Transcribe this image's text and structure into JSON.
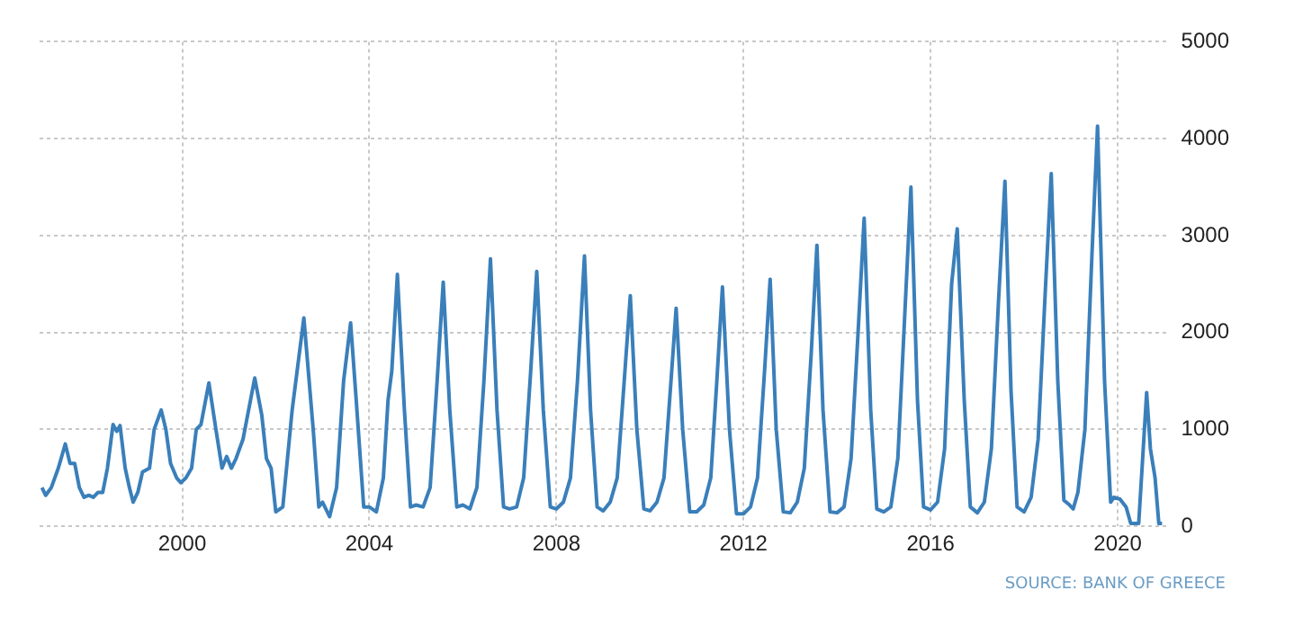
{
  "chart_data": {
    "type": "line",
    "x": [
      1997.0,
      1997.08,
      1997.2,
      1997.35,
      1997.5,
      1997.6,
      1997.7,
      1997.8,
      1997.9,
      1998.0,
      1998.1,
      1998.2,
      1998.3,
      1998.4,
      1998.52,
      1998.6,
      1998.67,
      1998.78,
      1998.87,
      1998.95,
      1999.05,
      1999.15,
      1999.3,
      1999.4,
      1999.55,
      1999.65,
      1999.75,
      1999.88,
      1999.97,
      2000.08,
      2000.2,
      2000.3,
      2000.4,
      2000.57,
      2000.72,
      2000.85,
      2000.95,
      2001.05,
      2001.15,
      2001.3,
      2001.55,
      2001.7,
      2001.8,
      2001.9,
      2002.0,
      2002.15,
      2002.35,
      2002.6,
      2002.8,
      2002.92,
      2003.0,
      2003.15,
      2003.3,
      2003.45,
      2003.6,
      2003.72,
      2003.88,
      2004.0,
      2004.15,
      2004.3,
      2004.4,
      2004.48,
      2004.6,
      2004.75,
      2004.88,
      2005.0,
      2005.15,
      2005.3,
      2005.45,
      2005.58,
      2005.72,
      2005.87,
      2006.0,
      2006.15,
      2006.3,
      2006.45,
      2006.59,
      2006.73,
      2006.87,
      2007.0,
      2007.15,
      2007.3,
      2007.45,
      2007.58,
      2007.72,
      2007.87,
      2008.0,
      2008.15,
      2008.3,
      2008.45,
      2008.6,
      2008.73,
      2008.87,
      2009.0,
      2009.15,
      2009.3,
      2009.45,
      2009.58,
      2009.72,
      2009.87,
      2010.0,
      2010.15,
      2010.3,
      2010.45,
      2010.56,
      2010.7,
      2010.85,
      2011.0,
      2011.15,
      2011.3,
      2011.43,
      2011.55,
      2011.7,
      2011.85,
      2012.0,
      2012.15,
      2012.3,
      2012.45,
      2012.57,
      2012.7,
      2012.85,
      2013.0,
      2013.15,
      2013.3,
      2013.45,
      2013.57,
      2013.7,
      2013.85,
      2014.0,
      2014.15,
      2014.3,
      2014.45,
      2014.58,
      2014.72,
      2014.85,
      2015.0,
      2015.15,
      2015.3,
      2015.45,
      2015.58,
      2015.72,
      2015.85,
      2016.0,
      2016.15,
      2016.3,
      2016.45,
      2016.57,
      2016.72,
      2016.85,
      2017.0,
      2017.15,
      2017.3,
      2017.45,
      2017.59,
      2017.72,
      2017.85,
      2018.0,
      2018.15,
      2018.3,
      2018.45,
      2018.58,
      2018.72,
      2018.85,
      2018.95,
      2019.05,
      2019.15,
      2019.3,
      2019.45,
      2019.57,
      2019.72,
      2019.85,
      2019.92,
      2020.05,
      2020.18,
      2020.28,
      2020.45,
      2020.62,
      2020.7,
      2020.8,
      2020.88,
      2020.95
    ],
    "series": [
      {
        "color": "#3a7fba",
        "values": [
          400,
          320,
          400,
          600,
          850,
          650,
          650,
          400,
          300,
          320,
          300,
          350,
          350,
          600,
          1050,
          980,
          1040,
          600,
          400,
          250,
          350,
          560,
          600,
          1000,
          1200,
          1000,
          650,
          500,
          450,
          500,
          600,
          1000,
          1050,
          1480,
          1000,
          600,
          720,
          600,
          700,
          900,
          1530,
          1150,
          700,
          600,
          150,
          200,
          1200,
          2150,
          1000,
          200,
          250,
          100,
          400,
          1500,
          2100,
          1300,
          200,
          200,
          150,
          500,
          1300,
          1600,
          2600,
          1200,
          200,
          220,
          200,
          400,
          1500,
          2520,
          1200,
          200,
          220,
          180,
          400,
          1500,
          2760,
          1200,
          200,
          180,
          200,
          500,
          1600,
          2630,
          1200,
          200,
          180,
          250,
          500,
          1500,
          2790,
          1200,
          200,
          160,
          250,
          500,
          1500,
          2380,
          1000,
          180,
          160,
          250,
          500,
          1500,
          2250,
          1000,
          150,
          150,
          220,
          500,
          1500,
          2470,
          1000,
          130,
          130,
          200,
          500,
          1600,
          2550,
          1000,
          150,
          140,
          250,
          600,
          1800,
          2900,
          1200,
          150,
          140,
          200,
          700,
          2000,
          3180,
          1200,
          180,
          150,
          200,
          700,
          2200,
          3500,
          1300,
          200,
          170,
          250,
          800,
          2500,
          3070,
          1300,
          200,
          140,
          250,
          800,
          2300,
          3560,
          1400,
          200,
          150,
          300,
          900,
          2400,
          3640,
          1500,
          270,
          230,
          180,
          350,
          1000,
          2800,
          4130,
          1500,
          250,
          300,
          280,
          200,
          30,
          30,
          1380,
          800,
          500,
          30,
          30
        ]
      }
    ],
    "xlim": [
      1996.95,
      2021.05
    ],
    "xticks": [
      2000,
      2004,
      2008,
      2012,
      2016,
      2020
    ],
    "ylim": [
      0,
      5000
    ],
    "yticks": [
      0,
      1000,
      2000,
      3000,
      4000,
      5000
    ],
    "grid": true,
    "legend": false,
    "marker": "none",
    "line_style": "solid",
    "annotations": [
      "SOURCE: BANK OF GREECE"
    ]
  }
}
